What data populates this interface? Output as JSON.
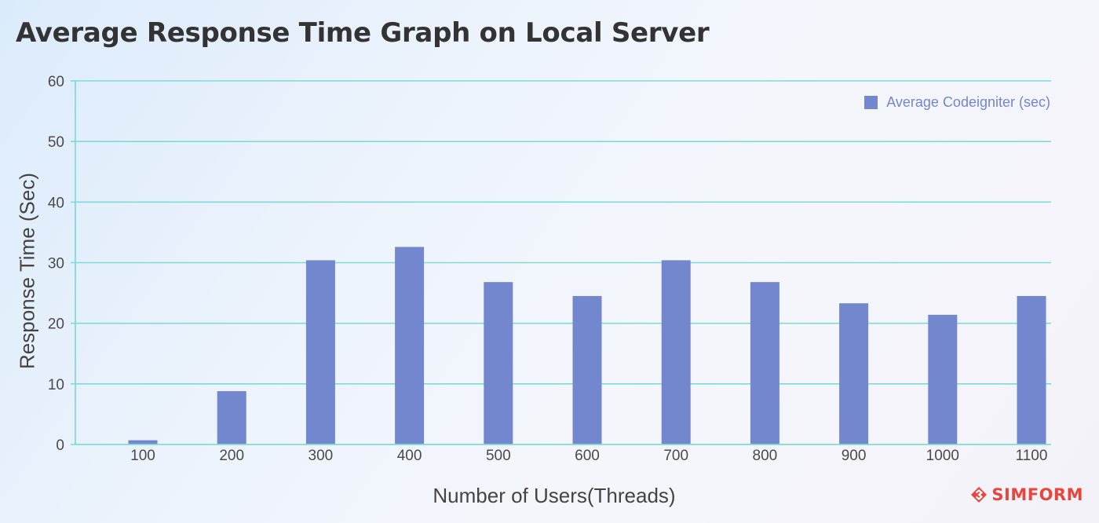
{
  "colors": {
    "bar": "#7387cf",
    "gridline": "#7edcd6",
    "axis": "#7edcd6",
    "text": "#444444",
    "brand": "#e8453f"
  },
  "brand": {
    "name": "SIMFORM",
    "icon": "simform-logo-icon"
  },
  "chart_data": {
    "type": "bar",
    "title": "Average Response Time Graph on Local Server",
    "xlabel": "Number of Users(Threads)",
    "ylabel": "Response Time (Sec)",
    "ylim": [
      0,
      60
    ],
    "yticks": [
      "0",
      "10",
      "20",
      "30",
      "40",
      "50",
      "60"
    ],
    "grid": true,
    "legend_position": "top-right",
    "categories": [
      "100",
      "200",
      "300",
      "400",
      "500",
      "600",
      "700",
      "800",
      "900",
      "1000",
      "1100"
    ],
    "series": [
      {
        "name": "Average Codeigniter (sec)",
        "values": [
          0.7,
          8.8,
          30.4,
          32.6,
          26.8,
          24.5,
          30.4,
          26.8,
          23.3,
          21.4,
          24.5
        ]
      }
    ]
  }
}
